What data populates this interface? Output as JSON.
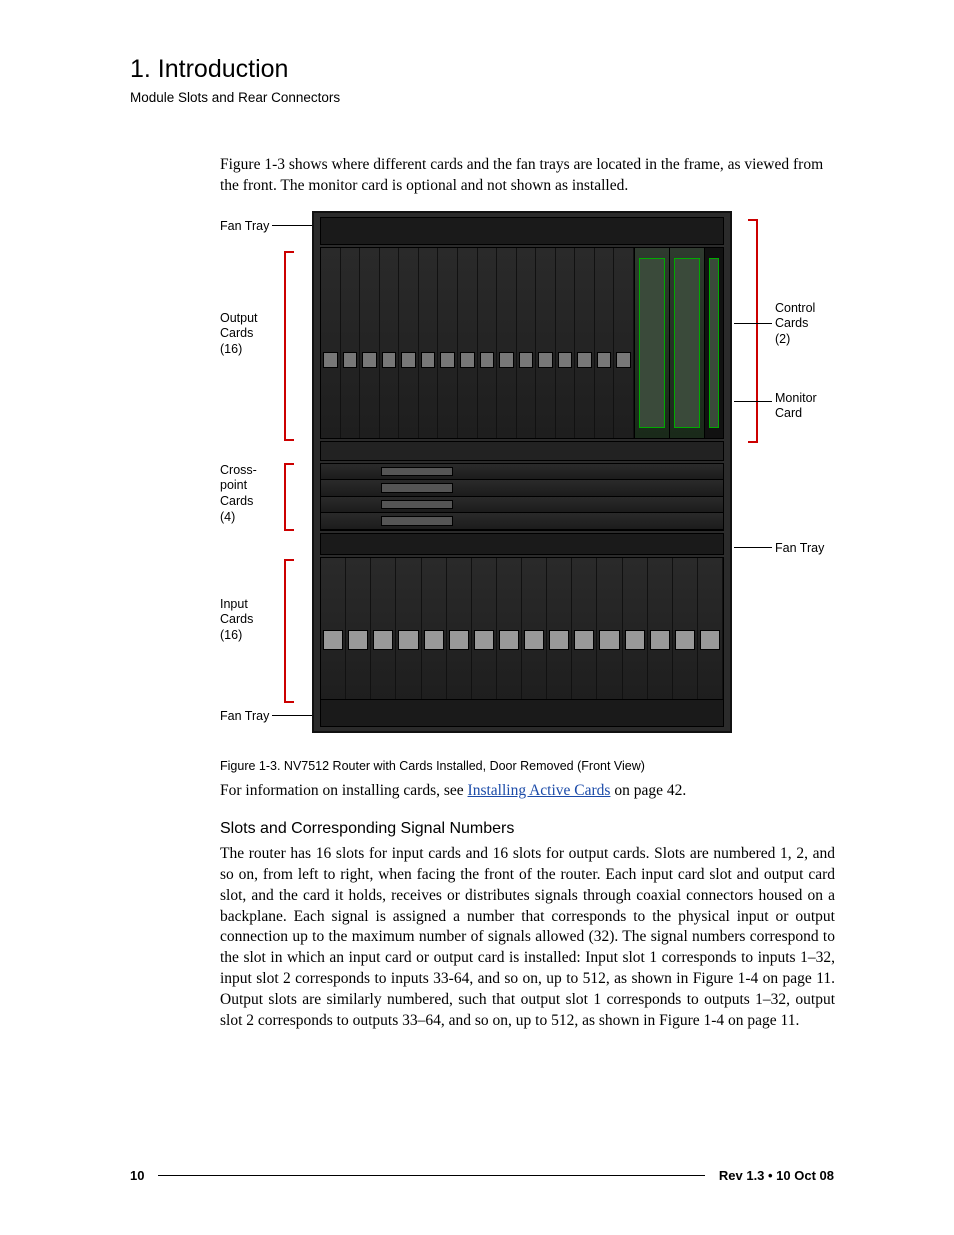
{
  "header": {
    "chapter_title": "1. Introduction",
    "running_head": "Module Slots and Rear Connectors"
  },
  "intro_para": "Figure 1-3 shows where different cards and the fan trays are located in the frame, as viewed from the front. The monitor card is optional and not shown as installed.",
  "figure": {
    "labels_left": {
      "fan_tray_top": "Fan Tray",
      "output_cards": "Output\nCards\n(16)",
      "crosspoint": "Cross-\npoint\nCards\n(4)",
      "input_cards": "Input\nCards\n(16)",
      "fan_tray_bot": "Fan Tray"
    },
    "labels_right": {
      "control_cards": "Control\nCards\n(2)",
      "monitor_card": "Monitor\nCard",
      "fan_tray_mid": "Fan Tray"
    },
    "caption": "Figure 1-3. NV7512 Router with Cards Installed, Door Removed (Front View)",
    "slot_counts": {
      "output": 16,
      "input": 16,
      "ctrl": 2,
      "xpoint_rows": 4
    },
    "colors": {
      "chassis": "#2b2b2b",
      "bracket": "#c00000",
      "link": "#1a4aa8"
    }
  },
  "after_figure": {
    "prefix": "For information on installing cards, see ",
    "link_text": "Installing Active Cards",
    "suffix": " on page 42."
  },
  "subsection": {
    "heading": "Slots and Corresponding Signal Numbers",
    "body": "The router has 16 slots for input cards and 16 slots for output cards. Slots are numbered 1, 2, and so on, from left to right, when facing the front of the router. Each input card slot and output card slot, and the card it holds, receives or distributes signals through coaxial connectors housed on a backplane. Each signal is assigned a number that corresponds to the physical input or output connection up to the maximum number of signals allowed (32). The signal numbers correspond to the slot in which an input card or output card is installed: Input slot 1 corresponds to inputs 1–32, input slot 2 corresponds to inputs 33-64, and so on, up to 512, as shown in Figure 1-4 on page 11. Output slots are similarly numbered, such that output slot 1 corresponds to outputs 1–32, output slot 2 corresponds to outputs 33–64, and so on, up to 512, as shown in Figure 1-4 on page 11."
  },
  "footer": {
    "page_number": "10",
    "revision": "Rev 1.3  •  10 Oct 08"
  }
}
